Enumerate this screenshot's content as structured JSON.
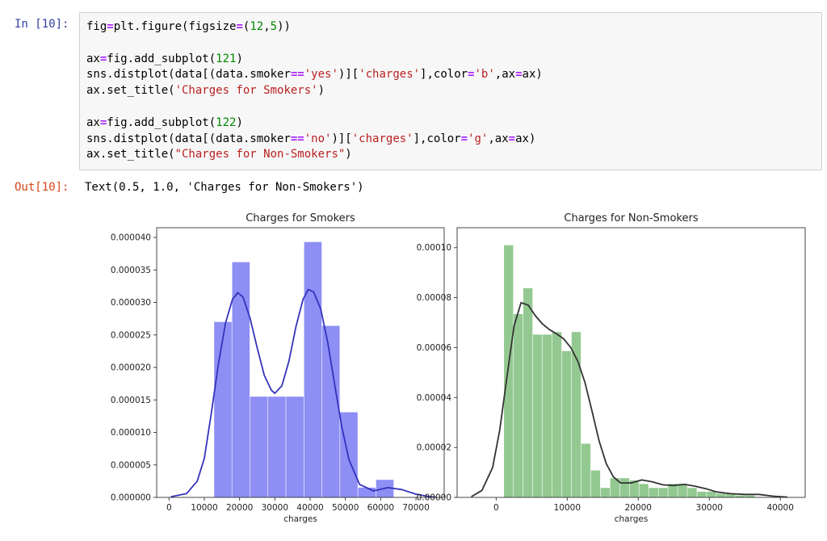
{
  "cell_in": {
    "prompt": "In [10]:",
    "lines": [
      [
        {
          "t": "fig"
        },
        {
          "t": "=",
          "c": "op"
        },
        {
          "t": "plt.figure(figsize"
        },
        {
          "t": "=",
          "c": "op"
        },
        {
          "t": "("
        },
        {
          "t": "12",
          "c": "num"
        },
        {
          "t": ","
        },
        {
          "t": "5",
          "c": "num"
        },
        {
          "t": "))"
        }
      ],
      [],
      [
        {
          "t": "ax"
        },
        {
          "t": "=",
          "c": "op"
        },
        {
          "t": "fig.add_subplot("
        },
        {
          "t": "121",
          "c": "num"
        },
        {
          "t": ")"
        }
      ],
      [
        {
          "t": "sns.distplot(data[(data.smoker"
        },
        {
          "t": "==",
          "c": "op"
        },
        {
          "t": "'yes'",
          "c": "str"
        },
        {
          "t": ")]["
        },
        {
          "t": "'charges'",
          "c": "str"
        },
        {
          "t": "],color"
        },
        {
          "t": "=",
          "c": "op"
        },
        {
          "t": "'b'",
          "c": "str"
        },
        {
          "t": ",ax"
        },
        {
          "t": "=",
          "c": "op"
        },
        {
          "t": "ax)"
        }
      ],
      [
        {
          "t": "ax.set_title("
        },
        {
          "t": "'Charges for Smokers'",
          "c": "str"
        },
        {
          "t": ")"
        }
      ],
      [],
      [
        {
          "t": "ax"
        },
        {
          "t": "=",
          "c": "op"
        },
        {
          "t": "fig.add_subplot("
        },
        {
          "t": "122",
          "c": "num"
        },
        {
          "t": ")"
        }
      ],
      [
        {
          "t": "sns.distplot(data[(data.smoker"
        },
        {
          "t": "==",
          "c": "op"
        },
        {
          "t": "'no'",
          "c": "str"
        },
        {
          "t": ")]["
        },
        {
          "t": "'charges'",
          "c": "str"
        },
        {
          "t": "],color"
        },
        {
          "t": "=",
          "c": "op"
        },
        {
          "t": "'g'",
          "c": "str"
        },
        {
          "t": ",ax"
        },
        {
          "t": "=",
          "c": "op"
        },
        {
          "t": "ax)"
        }
      ],
      [
        {
          "t": "ax.set_title("
        },
        {
          "t": "\"Charges for Non-Smokers\"",
          "c": "str"
        },
        {
          "t": ")"
        }
      ]
    ]
  },
  "cell_out": {
    "prompt": "Out[10]:",
    "text": "Text(0.5, 1.0, 'Charges for Non-Smokers')"
  },
  "colors": {
    "smokers_bar": "#8e8ef5",
    "smokers_line": "#3333bb",
    "nonsmokers_bar": "#93c991",
    "nonsmokers_line": "#333333",
    "in_prompt": "#303F9F",
    "out_prompt": "#D84315"
  },
  "chart_data": [
    {
      "type": "bar",
      "title": "Charges for Smokers",
      "xlabel": "charges",
      "ylabel": "",
      "xlim": [
        -3500,
        78000
      ],
      "ylim": [
        0,
        4.15e-05
      ],
      "xticks": [
        0,
        10000,
        20000,
        30000,
        40000,
        50000,
        60000,
        70000
      ],
      "yticks": [
        "0.000000",
        "0.000005",
        "0.000010",
        "0.000015",
        "0.000020",
        "0.000025",
        "0.000030",
        "0.000035",
        "0.000040"
      ],
      "ytick_values": [
        0,
        5e-06,
        1e-05,
        1.5e-05,
        2e-05,
        2.5e-05,
        3e-05,
        3.5e-05,
        4e-05
      ],
      "histogram": {
        "edges": [
          12800,
          17900,
          23000,
          28100,
          33200,
          38300,
          43400,
          48500,
          53600,
          58700,
          63800
        ],
        "values": [
          2.7e-05,
          3.62e-05,
          1.55e-05,
          1.55e-05,
          1.55e-05,
          3.93e-05,
          2.64e-05,
          1.31e-05,
          1.5e-06,
          2.7e-06
        ]
      },
      "kde": {
        "x": [
          500,
          5000,
          8000,
          10000,
          12000,
          14000,
          16000,
          18000,
          19500,
          21000,
          23000,
          25000,
          27000,
          29000,
          30000,
          32000,
          34000,
          36000,
          38000,
          39500,
          41000,
          43000,
          45000,
          47000,
          49000,
          51000,
          54000,
          58000,
          62000,
          66000,
          70000,
          74000,
          75500
        ],
        "y": [
          1e-07,
          6e-07,
          2.5e-06,
          6e-06,
          1.3e-05,
          2.05e-05,
          2.68e-05,
          3.05e-05,
          3.15e-05,
          3.08e-05,
          2.75e-05,
          2.3e-05,
          1.88e-05,
          1.65e-05,
          1.6e-05,
          1.72e-05,
          2.1e-05,
          2.63e-05,
          3.05e-05,
          3.2e-05,
          3.16e-05,
          2.9e-05,
          2.38e-05,
          1.72e-05,
          1.08e-05,
          5.8e-06,
          2e-06,
          1e-06,
          1.5e-06,
          1.2e-06,
          5e-07,
          1e-07,
          3e-08
        ]
      }
    },
    {
      "type": "bar",
      "title": "Charges for Non-Smokers",
      "xlabel": "charges",
      "ylabel": "",
      "xlim": [
        -5500,
        43500
      ],
      "ylim": [
        0,
        0.000108
      ],
      "xticks": [
        0,
        10000,
        20000,
        30000,
        40000
      ],
      "yticks": [
        "0.00000",
        "0.00002",
        "0.00004",
        "0.00006",
        "0.00008",
        "0.00010"
      ],
      "ytick_values": [
        0,
        2e-05,
        4e-05,
        6e-05,
        8e-05,
        0.0001
      ],
      "histogram": {
        "edges": [
          1100,
          2460,
          3820,
          5180,
          6540,
          7900,
          9260,
          10620,
          11980,
          13340,
          14700,
          16060,
          17420,
          18780,
          20140,
          21500,
          22860,
          24220,
          25580,
          26940,
          28300,
          29660,
          31020,
          32380,
          33740,
          35100,
          36460
        ],
        "values": [
          0.000101,
          7.34e-05,
          8.38e-05,
          6.52e-05,
          6.52e-05,
          6.62e-05,
          5.86e-05,
          6.62e-05,
          2.15e-05,
          1.08e-05,
          3.8e-06,
          7.7e-06,
          7.7e-06,
          6.8e-06,
          5.4e-06,
          3.8e-06,
          3.8e-06,
          5.4e-06,
          5.4e-06,
          3.8e-06,
          2.3e-06,
          2.3e-06,
          1.5e-06,
          1.5e-06,
          8e-07,
          8e-07
        ]
      },
      "kde": {
        "x": [
          -3500,
          -2000,
          -500,
          500,
          1500,
          2500,
          3500,
          4500,
          5500,
          6500,
          7500,
          8500,
          9500,
          10500,
          11500,
          12500,
          13500,
          14500,
          15500,
          16500,
          17500,
          19000,
          20500,
          22000,
          23500,
          25000,
          26500,
          28000,
          29500,
          31000,
          33000,
          35000,
          37000,
          39000,
          41000
        ],
        "y": [
          3e-07,
          2.8e-06,
          1.2e-05,
          2.7e-05,
          4.8e-05,
          6.85e-05,
          7.8e-05,
          7.7e-05,
          7.28e-05,
          6.95e-05,
          6.72e-05,
          6.55e-05,
          6.35e-05,
          6e-05,
          5.45e-05,
          4.6e-05,
          3.45e-05,
          2.25e-05,
          1.35e-05,
          8.2e-06,
          5.8e-06,
          5.8e-06,
          7e-06,
          6.2e-06,
          5e-06,
          4.8e-06,
          5.2e-06,
          4.5e-06,
          3.5e-06,
          2.2e-06,
          1.5e-06,
          1.2e-06,
          1.2e-06,
          5e-07,
          1e-07
        ]
      }
    }
  ]
}
